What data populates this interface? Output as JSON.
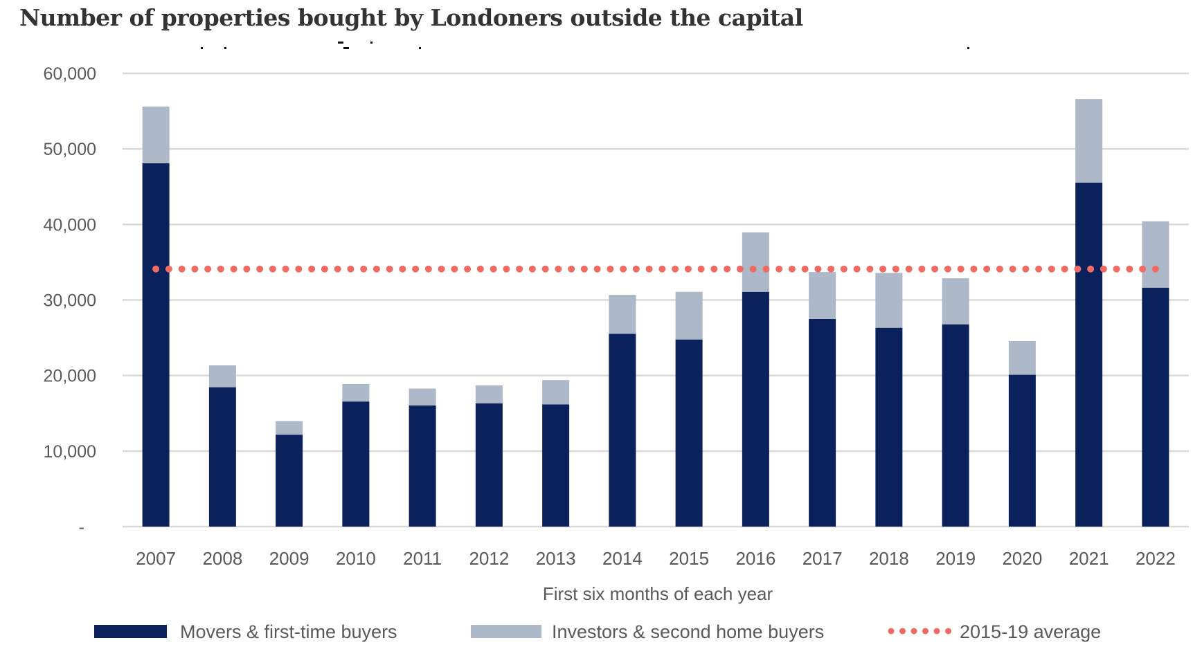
{
  "chart_data": {
    "type": "bar",
    "stacked": true,
    "title": "Number of properties bought by Londoners outside the capital",
    "xlabel": "First six months of each year",
    "ylabel": "",
    "ylim": [
      0,
      60000
    ],
    "yticks": [
      0,
      10000,
      20000,
      30000,
      40000,
      50000,
      60000
    ],
    "ytick_labels": [
      "-",
      "10,000",
      "20,000",
      "30,000",
      "40,000",
      "50,000",
      "60,000"
    ],
    "grid": true,
    "categories": [
      "2007",
      "2008",
      "2009",
      "2010",
      "2011",
      "2012",
      "2013",
      "2014",
      "2015",
      "2016",
      "2017",
      "2018",
      "2019",
      "2020",
      "2021",
      "2022"
    ],
    "series": [
      {
        "name": "Movers & first-time buyers",
        "color": "#0a215c",
        "values": [
          48100,
          18450,
          12170,
          16560,
          16040,
          16310,
          16170,
          25530,
          24770,
          31080,
          27480,
          26320,
          26780,
          20100,
          45530,
          31630
        ]
      },
      {
        "name": "Investors & second home buyers",
        "color": "#adb8c8",
        "values": [
          7500,
          2890,
          1800,
          2320,
          2230,
          2380,
          3230,
          5150,
          6310,
          7870,
          6220,
          7260,
          6090,
          4450,
          11070,
          8780
        ]
      }
    ],
    "reference_line": {
      "name": "2015-19 average",
      "value": 34100,
      "style": "dotted",
      "color": "#ef6b63"
    },
    "legend": {
      "placement": "bottom",
      "entries": [
        "Movers & first-time buyers",
        "Investors & second home buyers",
        "2015-19 average"
      ]
    }
  },
  "colors": {
    "gridline": "#d9d9d9",
    "text": "#595959",
    "title": "#333333"
  }
}
